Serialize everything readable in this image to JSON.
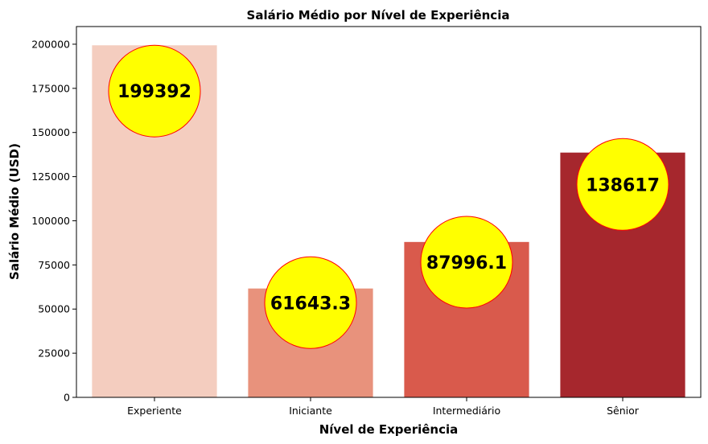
{
  "chart_data": {
    "type": "bar",
    "title": "Salário Médio por Nível de Experiência",
    "xlabel": "Nível de Experiência",
    "ylabel": "Salário Médio (USD)",
    "categories": [
      "Experiente",
      "Iniciante",
      "Intermediário",
      "Sênior"
    ],
    "values": [
      199392,
      61643.3,
      87996.1,
      138617
    ],
    "value_labels": [
      "199392",
      "61643.3",
      "87996.1",
      "138617"
    ],
    "bar_colors": [
      "#f4cdbf",
      "#e8927c",
      "#d95a4c",
      "#a6272d"
    ],
    "ylim": [
      0,
      210000
    ],
    "yticks": [
      0,
      25000,
      50000,
      75000,
      100000,
      125000,
      150000,
      175000,
      200000
    ],
    "ytick_labels": [
      "0",
      "25000",
      "50000",
      "75000",
      "100000",
      "125000",
      "150000",
      "175000",
      "200000"
    ],
    "grid": false,
    "annotation_style": {
      "fill": "#ffff00",
      "stroke": "#ff0000"
    }
  }
}
